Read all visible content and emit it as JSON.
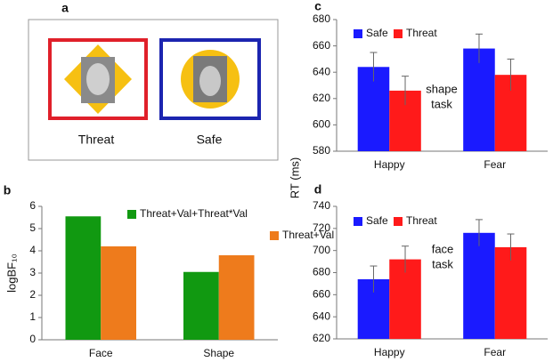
{
  "diagram": {
    "panel_label": "a",
    "labels": [
      "Threat",
      "Safe"
    ]
  },
  "chart_data": [
    {
      "type": "bar",
      "panel_label": "b",
      "ylabel": "logBF₁₀",
      "categories": [
        "Face",
        "Shape"
      ],
      "series": [
        {
          "name": "Threat+Val+Threat*Val",
          "color": "#119911",
          "values": [
            5.55,
            3.05
          ]
        },
        {
          "name": "Threat+Val",
          "color": "#ee7b1c",
          "values": [
            4.2,
            3.8
          ]
        }
      ],
      "ylim": [
        0,
        6
      ],
      "yticks": [
        0,
        1,
        2,
        3,
        4,
        5,
        6
      ],
      "legend": "upper right"
    },
    {
      "type": "bar",
      "panel_label": "c",
      "ylabel": "RT (ms)",
      "annotation": [
        "shape",
        "task"
      ],
      "categories": [
        "Happy",
        "Fear"
      ],
      "series": [
        {
          "name": "Safe",
          "color": "#1a1aff",
          "values": [
            644,
            658
          ],
          "errors": [
            11,
            11
          ]
        },
        {
          "name": "Threat",
          "color": "#ff1a1a",
          "values": [
            626,
            638
          ],
          "errors": [
            11,
            12
          ]
        }
      ],
      "ylim": [
        580,
        680
      ],
      "yticks": [
        580,
        600,
        620,
        640,
        660,
        680
      ],
      "legend": "upper left"
    },
    {
      "type": "bar",
      "panel_label": "d",
      "annotation": [
        "face",
        "task"
      ],
      "categories": [
        "Happy",
        "Fear"
      ],
      "series": [
        {
          "name": "Safe",
          "color": "#1a1aff",
          "values": [
            674,
            716
          ],
          "errors": [
            12,
            12
          ]
        },
        {
          "name": "Threat",
          "color": "#ff1a1a",
          "values": [
            692,
            703
          ],
          "errors": [
            12,
            12
          ]
        }
      ],
      "ylim": [
        620,
        740
      ],
      "yticks": [
        620,
        640,
        660,
        680,
        700,
        720,
        740
      ],
      "legend": "upper left"
    }
  ]
}
